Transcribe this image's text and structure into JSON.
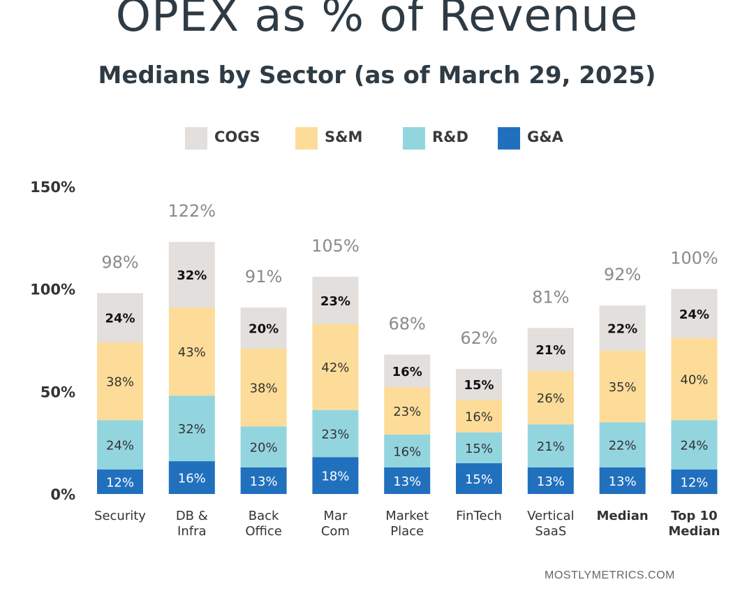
{
  "header": {
    "title": "OPEX as % of Revenue",
    "subtitle": "Medians by Sector (as of March 29, 2025)"
  },
  "source": "MOSTLYMETRICS.COM",
  "colors": {
    "COGS": "#e2dfdd",
    "S&M": "#fcdc98",
    "R&D": "#93d5df",
    "G&A": "#2170bd",
    "total_label": "#8a8a8a",
    "axis_text": "#333333"
  },
  "chart_data": {
    "type": "bar",
    "stacked": true,
    "title": "OPEX as % of Revenue",
    "subtitle": "Medians by Sector (as of March 29, 2025)",
    "categories": [
      [
        "Security"
      ],
      [
        "DB &",
        "Infra"
      ],
      [
        "Back",
        "Office"
      ],
      [
        "Mar",
        "Com"
      ],
      [
        "Market",
        "Place"
      ],
      [
        "FinTech"
      ],
      [
        "Vertical",
        "SaaS"
      ],
      [
        "Median"
      ],
      [
        "Top 10",
        "Median"
      ]
    ],
    "bold_categories": [
      7,
      8
    ],
    "series": [
      {
        "name": "G&A",
        "values": [
          12,
          16,
          13,
          18,
          13,
          15,
          13,
          13,
          12
        ]
      },
      {
        "name": "R&D",
        "values": [
          24,
          32,
          20,
          23,
          16,
          15,
          21,
          22,
          24
        ]
      },
      {
        "name": "S&M",
        "values": [
          38,
          43,
          38,
          42,
          23,
          16,
          26,
          35,
          40
        ]
      },
      {
        "name": "COGS",
        "values": [
          24,
          32,
          20,
          23,
          16,
          15,
          21,
          22,
          24
        ]
      }
    ],
    "totals": [
      98,
      122,
      91,
      105,
      68,
      62,
      81,
      92,
      100
    ],
    "legend_order": [
      "COGS",
      "S&M",
      "R&D",
      "G&A"
    ],
    "yticks": [
      0,
      50,
      100,
      150
    ],
    "ytick_labels": [
      "0%",
      "50%",
      "100%",
      "150%"
    ],
    "ylim": [
      0,
      150
    ],
    "grid": false,
    "legend_position": "top-center",
    "xlabel": "",
    "ylabel": ""
  }
}
